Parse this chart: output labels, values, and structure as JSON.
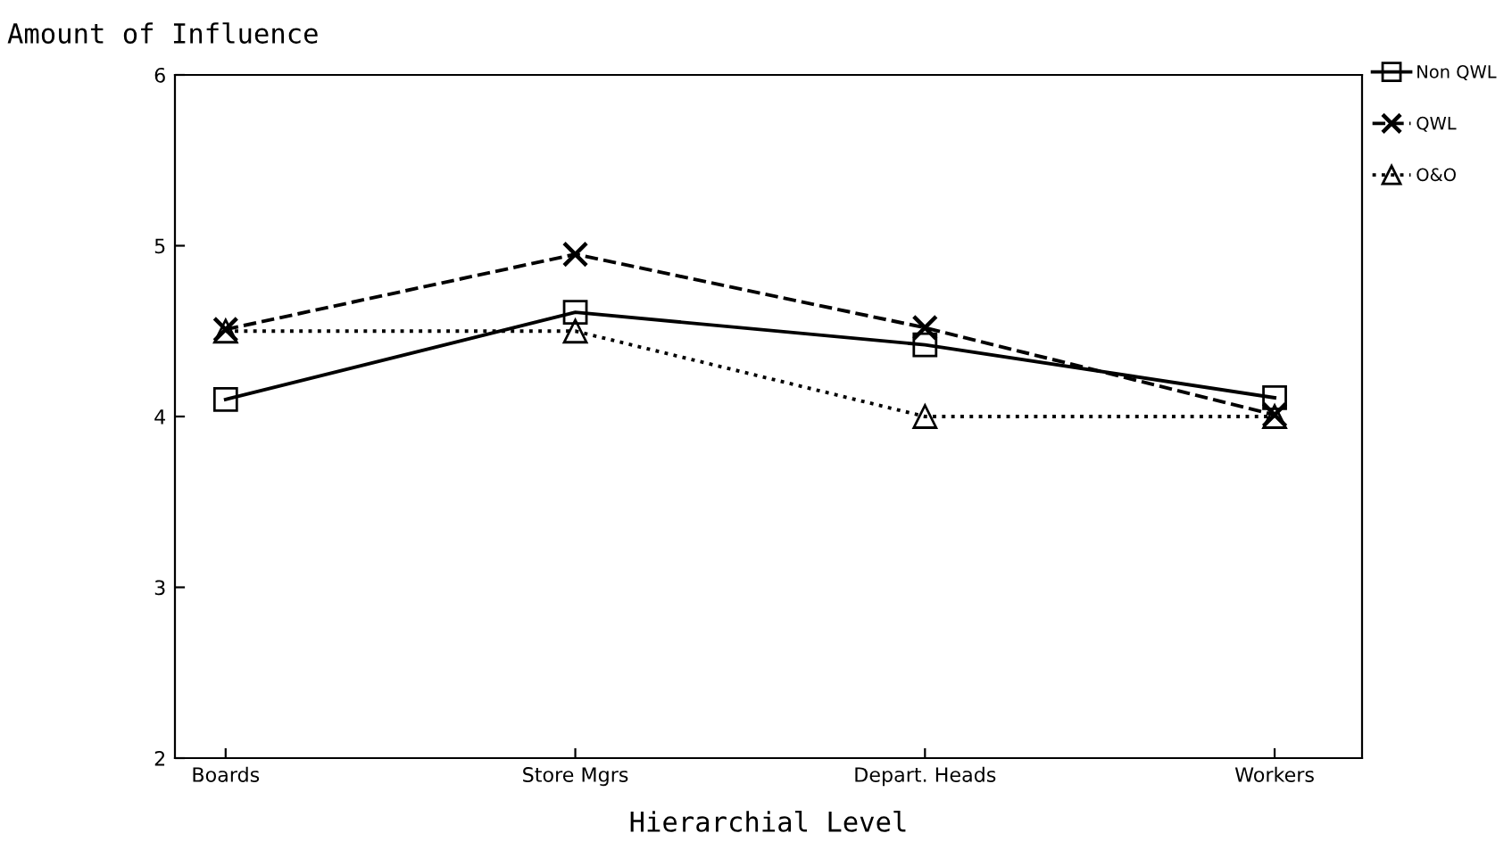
{
  "chart_data": {
    "type": "line",
    "ylabel": "Amount of Influence",
    "xlabel": "Hierarchial Level",
    "categories": [
      "Boards",
      "Store Mgrs",
      "Depart. Heads",
      "Workers"
    ],
    "ylim": [
      2,
      6
    ],
    "yticks": [
      2,
      3,
      4,
      5,
      6
    ],
    "grid": false,
    "legend": "top right",
    "series": [
      {
        "name": "Non QWL",
        "color": "#000000",
        "values": [
          4.1,
          4.61,
          4.42,
          4.11
        ],
        "marker": "square",
        "line_style": "solid"
      },
      {
        "name": "QWL",
        "color": "#000000",
        "values": [
          4.51,
          4.95,
          4.52,
          4.01
        ],
        "marker": "cross",
        "line_style": "dashed"
      },
      {
        "name": "O&O",
        "color": "#000000",
        "values": [
          4.5,
          4.5,
          4.0,
          4.0
        ],
        "marker": "triangle",
        "line_style": "dotted"
      }
    ]
  }
}
